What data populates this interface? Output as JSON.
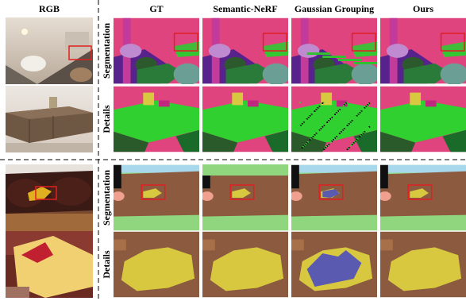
{
  "header": {
    "columns": [
      "RGB",
      "GT",
      "Semantic-NeRF",
      "Gaussian Grouping",
      "Ours"
    ]
  },
  "rows": [
    {
      "label": "Segmentation"
    },
    {
      "label": "Details"
    },
    {
      "label": "Segmentation"
    },
    {
      "label": "Details"
    }
  ]
}
